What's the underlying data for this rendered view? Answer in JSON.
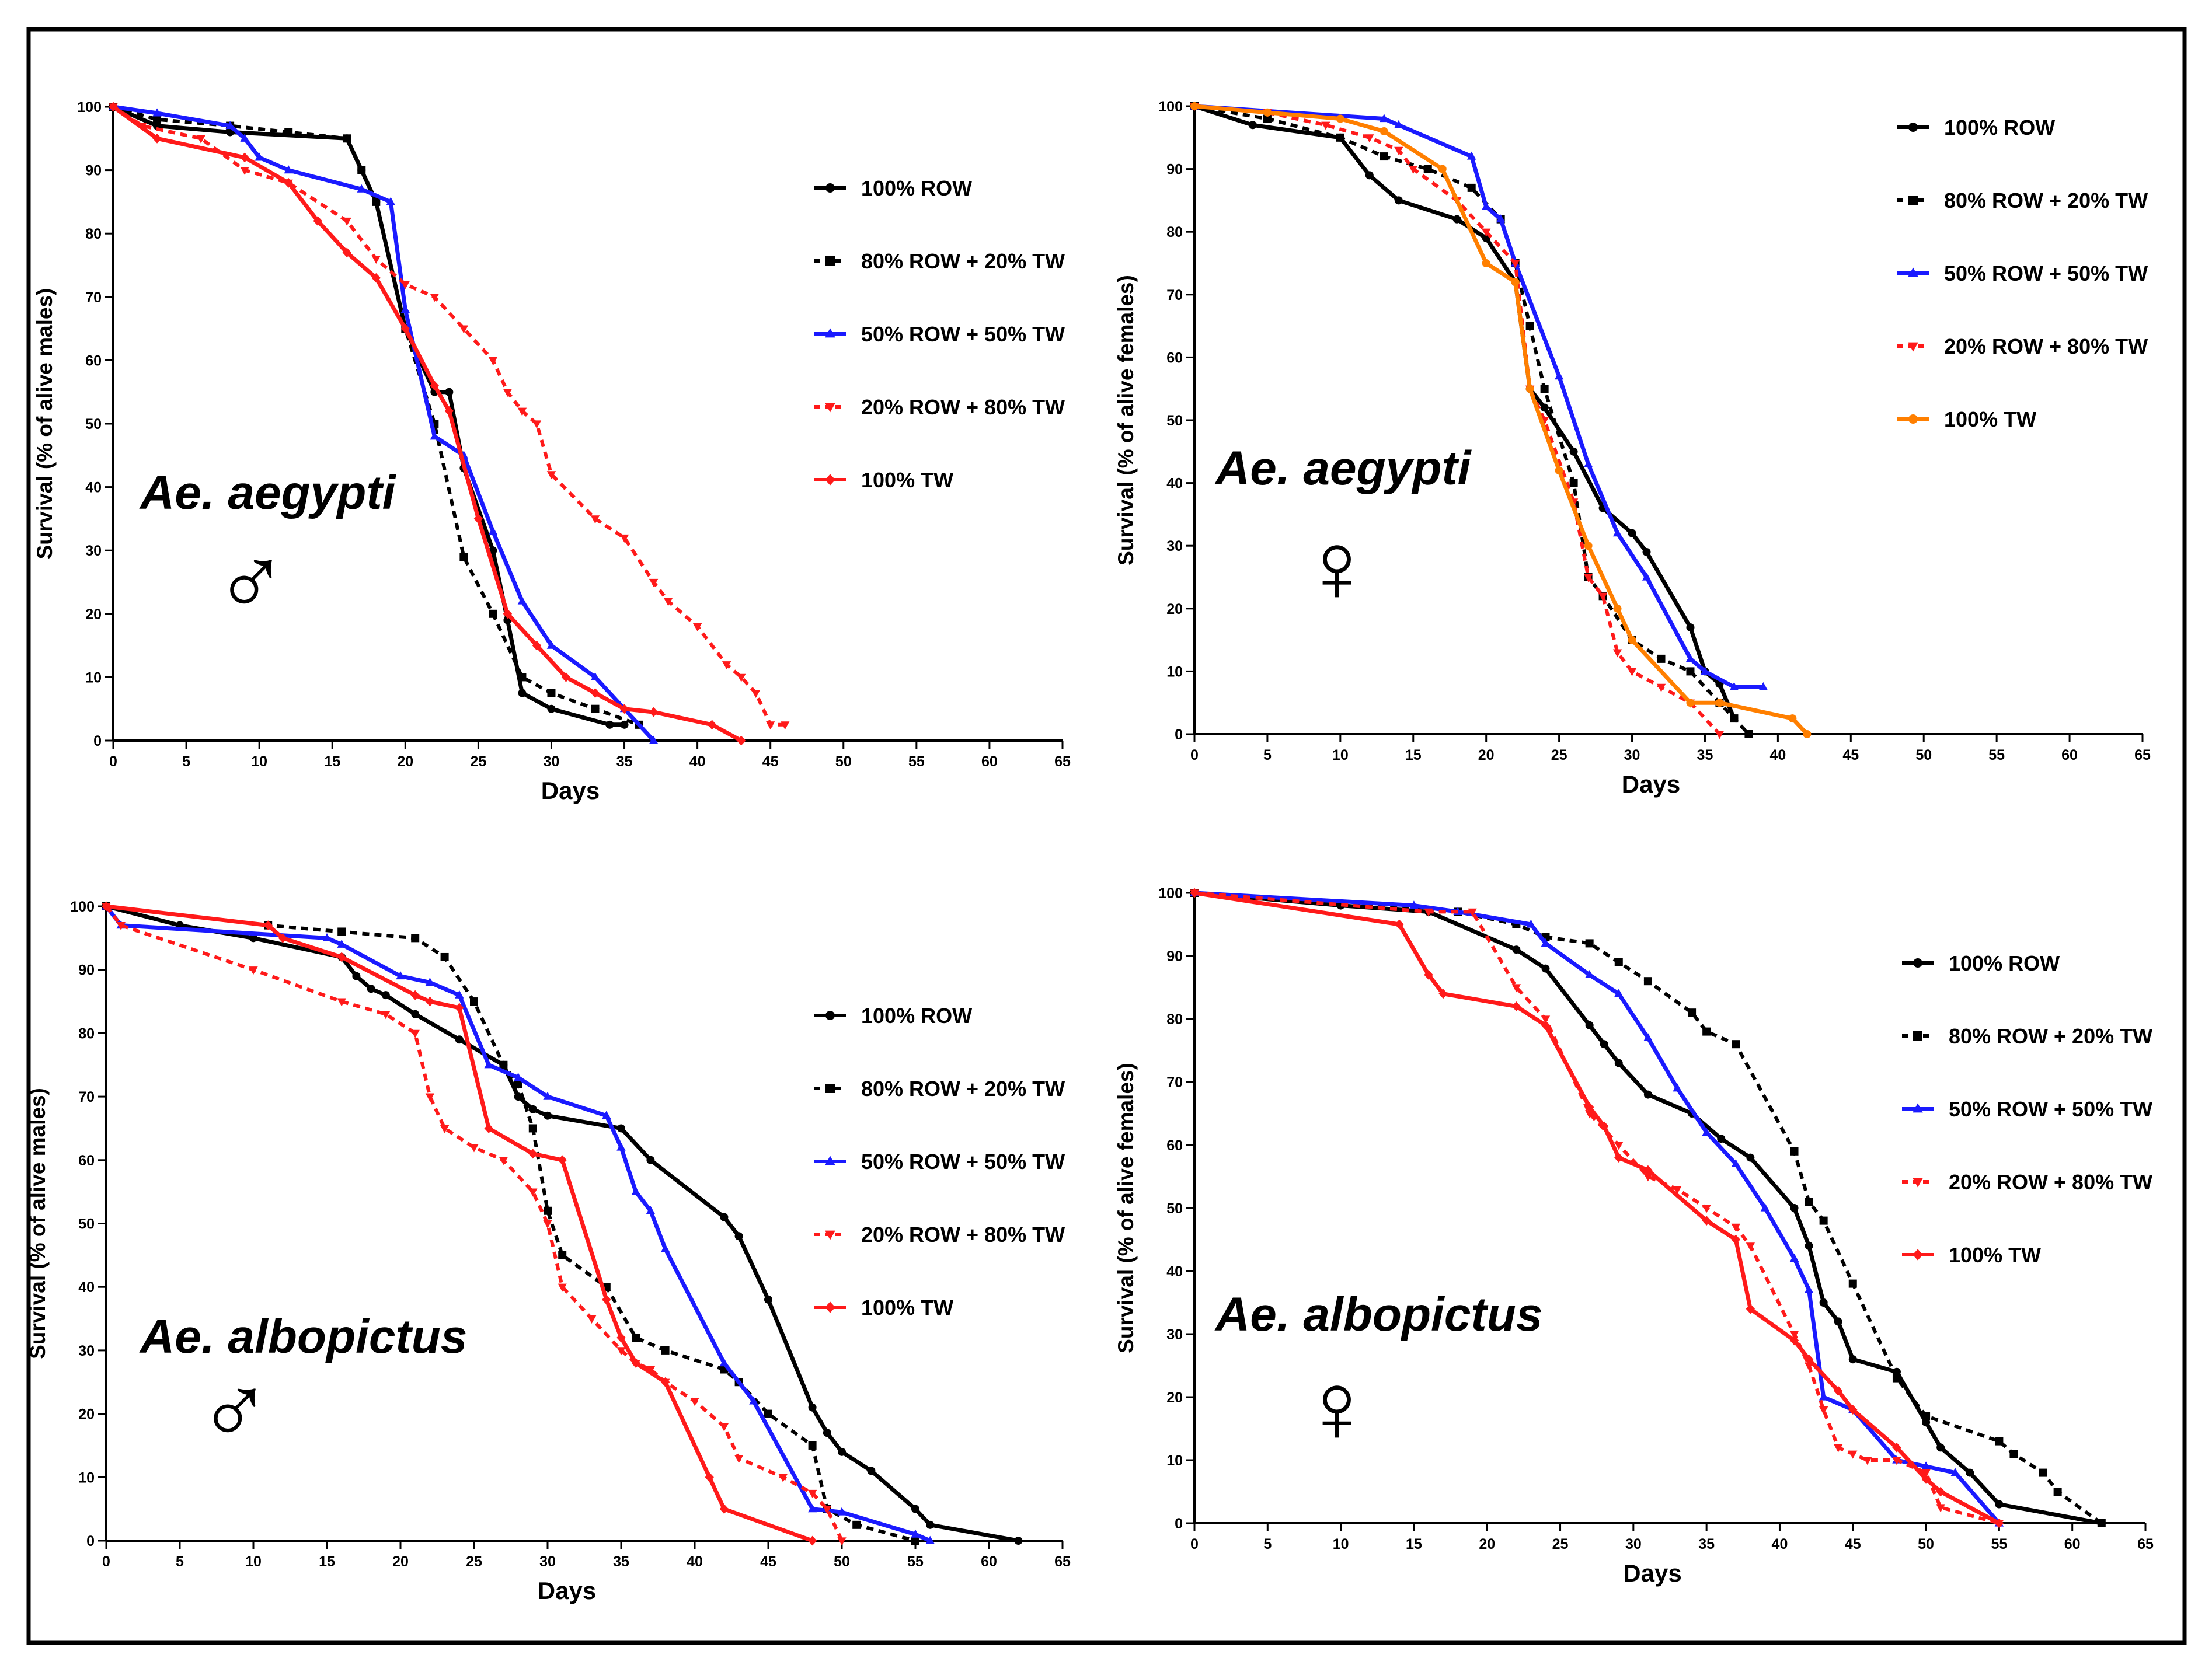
{
  "figure": {
    "border_color": "#000000",
    "background": "#ffffff"
  },
  "chart_data": [
    {
      "type": "line",
      "species_label": "Ae. aegypti",
      "sex_symbol": "♂",
      "xlabel": "Days",
      "ylabel": "Survival (% of alive males)",
      "xlim": [
        0,
        65
      ],
      "ylim": [
        0,
        100
      ],
      "xticks": [
        0,
        5,
        10,
        15,
        20,
        25,
        30,
        35,
        40,
        45,
        50,
        55,
        60,
        65
      ],
      "yticks": [
        0,
        10,
        20,
        30,
        40,
        50,
        60,
        70,
        80,
        90,
        100
      ],
      "legend_position": "right",
      "series": [
        {
          "name": "100% ROW",
          "color": "#000000",
          "dash": "solid",
          "marker": "circle",
          "x": [
            0,
            3,
            8,
            16,
            17,
            18,
            20,
            22,
            23,
            24,
            26,
            27,
            28,
            30,
            34,
            35
          ],
          "y": [
            100,
            97,
            96,
            95,
            90,
            85,
            65,
            55,
            55,
            43,
            30,
            19,
            7.5,
            5,
            2.5,
            2.5
          ]
        },
        {
          "name": "80% ROW + 20% TW",
          "color": "#000000",
          "dash": "dotted",
          "marker": "square",
          "x": [
            0,
            3,
            8,
            12,
            16,
            17,
            18,
            20,
            22,
            24,
            26,
            28,
            30,
            33,
            36
          ],
          "y": [
            100,
            98,
            97,
            96,
            95,
            90,
            85,
            65,
            50,
            29,
            20,
            10,
            7.5,
            5,
            2.5
          ]
        },
        {
          "name": "50% ROW + 50% TW",
          "color": "#1a1aff",
          "dash": "solid",
          "marker": "triangle-up",
          "x": [
            0,
            3,
            8,
            9,
            10,
            12,
            17,
            19,
            20,
            22,
            24,
            26,
            28,
            30,
            33,
            35,
            37
          ],
          "y": [
            100,
            99,
            97,
            95,
            92,
            90,
            87,
            85,
            68,
            48,
            45,
            33,
            22,
            15,
            10,
            5,
            0
          ]
        },
        {
          "name": "20% ROW + 80% TW",
          "color": "#ff1a1a",
          "dash": "dotted",
          "marker": "triangle-down",
          "x": [
            0,
            2,
            6,
            9,
            12,
            16,
            18,
            20,
            22,
            24,
            26,
            27,
            28,
            29,
            30,
            33,
            35,
            37,
            38,
            40,
            42,
            43,
            44,
            45,
            46
          ],
          "y": [
            100,
            97,
            95,
            90,
            88,
            82,
            76,
            72,
            70,
            65,
            60,
            55,
            52,
            50,
            42,
            35,
            32,
            25,
            22,
            18,
            12,
            10,
            7.5,
            2.5,
            2.5
          ]
        },
        {
          "name": "100% TW",
          "color": "#ff1a1a",
          "dash": "solid",
          "marker": "diamond",
          "x": [
            0,
            3,
            9,
            12,
            14,
            16,
            18,
            20,
            22,
            23,
            25,
            27,
            29,
            31,
            33,
            35,
            37,
            41,
            43
          ],
          "y": [
            100,
            95,
            92,
            88,
            82,
            77,
            73,
            65,
            56,
            52,
            35,
            20,
            15,
            10,
            7.5,
            5,
            4.5,
            2.5,
            0
          ]
        }
      ]
    },
    {
      "type": "line",
      "species_label": "Ae. aegypti",
      "sex_symbol": "♀",
      "xlabel": "Days",
      "ylabel": "Survival (% of alive females)",
      "xlim": [
        0,
        65
      ],
      "ylim": [
        0,
        100
      ],
      "xticks": [
        0,
        5,
        10,
        15,
        20,
        25,
        30,
        35,
        40,
        45,
        50,
        55,
        60,
        65
      ],
      "yticks": [
        0,
        10,
        20,
        30,
        40,
        50,
        60,
        70,
        80,
        90,
        100
      ],
      "legend_position": "top-right",
      "series": [
        {
          "name": "100% ROW",
          "color": "#000000",
          "dash": "solid",
          "marker": "circle",
          "x": [
            0,
            4,
            10,
            12,
            14,
            18,
            20,
            22,
            23,
            24,
            26,
            28,
            30,
            31,
            34,
            35,
            36,
            37
          ],
          "y": [
            100,
            97,
            95,
            89,
            85,
            82,
            79,
            72,
            55,
            52,
            45,
            36,
            32,
            29,
            17,
            10,
            8,
            2.5
          ]
        },
        {
          "name": "80% ROW + 20% TW",
          "color": "#000000",
          "dash": "dotted",
          "marker": "square",
          "x": [
            0,
            5,
            10,
            13,
            16,
            19,
            21,
            22,
            23,
            24,
            26,
            27,
            28,
            30,
            32,
            34,
            36,
            37,
            38
          ],
          "y": [
            100,
            98,
            95,
            92,
            90,
            87,
            82,
            75,
            65,
            55,
            40,
            25,
            22,
            15,
            12,
            10,
            5,
            2.5,
            0
          ]
        },
        {
          "name": "50% ROW + 50% TW",
          "color": "#1a1aff",
          "dash": "solid",
          "marker": "triangle-up",
          "x": [
            0,
            13,
            14,
            19,
            20,
            21,
            22,
            25,
            27,
            29,
            31,
            34,
            35,
            37,
            39
          ],
          "y": [
            100,
            98,
            97,
            92,
            84,
            82,
            75,
            57,
            43,
            32,
            25,
            12,
            10,
            7.5,
            7.5
          ]
        },
        {
          "name": "20% ROW + 80% TW",
          "color": "#ff1a1a",
          "dash": "dotted",
          "marker": "triangle-down",
          "x": [
            0,
            5,
            9,
            12,
            14,
            15,
            18,
            20,
            22,
            23,
            24,
            26,
            27,
            28,
            29,
            30,
            32,
            34,
            36
          ],
          "y": [
            100,
            99,
            97,
            95,
            93,
            90,
            85,
            80,
            75,
            55,
            50,
            37,
            25,
            22,
            13,
            10,
            7.5,
            5,
            0
          ]
        },
        {
          "name": "100% TW",
          "color": "#ff7f00",
          "dash": "solid",
          "marker": "circle",
          "x": [
            0,
            5,
            10,
            13,
            17,
            20,
            22,
            23,
            25,
            27,
            29,
            30,
            34,
            36,
            41,
            42
          ],
          "y": [
            100,
            99,
            98,
            96,
            90,
            75,
            72,
            55,
            42,
            30,
            20,
            15,
            5,
            5,
            2.5,
            0
          ]
        }
      ]
    },
    {
      "type": "line",
      "species_label": "Ae. albopictus",
      "sex_symbol": "♂",
      "xlabel": "Days",
      "ylabel": "Survival (% of alive males)",
      "xlim": [
        0,
        65
      ],
      "ylim": [
        0,
        100
      ],
      "xticks": [
        0,
        5,
        10,
        15,
        20,
        25,
        30,
        35,
        40,
        45,
        50,
        55,
        60,
        65
      ],
      "yticks": [
        0,
        10,
        20,
        30,
        40,
        50,
        60,
        70,
        80,
        90,
        100
      ],
      "legend_position": "right",
      "series": [
        {
          "name": "100% ROW",
          "color": "#000000",
          "dash": "solid",
          "marker": "circle",
          "x": [
            0,
            5,
            10,
            16,
            17,
            18,
            19,
            21,
            24,
            27,
            28,
            29,
            30,
            35,
            37,
            42,
            43,
            45,
            48,
            49,
            50,
            52,
            55,
            56,
            62
          ],
          "y": [
            100,
            97,
            95,
            92,
            89,
            87,
            86,
            83,
            79,
            75,
            70,
            68,
            67,
            65,
            60,
            51,
            48,
            38,
            21,
            17,
            14,
            11,
            5,
            2.5,
            0
          ]
        },
        {
          "name": "80% ROW + 20% TW",
          "color": "#000000",
          "dash": "dotted",
          "marker": "square",
          "x": [
            0,
            11,
            16,
            21,
            23,
            25,
            27,
            28,
            29,
            30,
            31,
            34,
            36,
            38,
            42,
            43,
            45,
            48,
            49,
            51,
            55
          ],
          "y": [
            100,
            97,
            96,
            95,
            92,
            85,
            75,
            72,
            65,
            52,
            45,
            40,
            32,
            30,
            27,
            25,
            20,
            15,
            5,
            2.5,
            0
          ]
        },
        {
          "name": "50% ROW + 50% TW",
          "color": "#1a1aff",
          "dash": "solid",
          "marker": "triangle-up",
          "x": [
            0,
            1,
            15,
            16,
            20,
            22,
            24,
            26,
            28,
            30,
            34,
            35,
            36,
            37,
            38,
            42,
            44,
            48,
            50,
            55,
            56
          ],
          "y": [
            100,
            97,
            95,
            94,
            89,
            88,
            86,
            75,
            73,
            70,
            67,
            62,
            55,
            52,
            46,
            28,
            22,
            5,
            4.5,
            1,
            0
          ]
        },
        {
          "name": "20% ROW + 80% TW",
          "color": "#ff1a1a",
          "dash": "dotted",
          "marker": "triangle-down",
          "x": [
            0,
            1,
            10,
            16,
            19,
            21,
            22,
            23,
            25,
            27,
            29,
            30,
            31,
            33,
            35,
            36,
            37,
            38,
            40,
            42,
            43,
            46,
            48,
            49,
            50
          ],
          "y": [
            100,
            97,
            90,
            85,
            83,
            80,
            70,
            65,
            62,
            60,
            55,
            50,
            40,
            35,
            30,
            28,
            27,
            25,
            22,
            18,
            13,
            10,
            7.5,
            5,
            0
          ]
        },
        {
          "name": "100% TW",
          "color": "#ff1a1a",
          "dash": "solid",
          "marker": "diamond",
          "x": [
            0,
            11,
            12,
            16,
            21,
            22,
            24,
            26,
            29,
            31,
            34,
            35,
            36,
            38,
            41,
            42,
            48
          ],
          "y": [
            100,
            97,
            95,
            92,
            86,
            85,
            84,
            65,
            61,
            60,
            38,
            32,
            28,
            25,
            10,
            5,
            0
          ]
        }
      ]
    },
    {
      "type": "line",
      "species_label": "Ae. albopictus",
      "sex_symbol": "♀",
      "xlabel": "Days",
      "ylabel": "Survival (% of alive females)",
      "xlim": [
        0,
        65
      ],
      "ylim": [
        0,
        100
      ],
      "xticks": [
        0,
        5,
        10,
        15,
        20,
        25,
        30,
        35,
        40,
        45,
        50,
        55,
        60,
        65
      ],
      "yticks": [
        0,
        10,
        20,
        30,
        40,
        50,
        60,
        70,
        80,
        90,
        100
      ],
      "legend_position": "right",
      "series": [
        {
          "name": "100% ROW",
          "color": "#000000",
          "dash": "solid",
          "marker": "circle",
          "x": [
            0,
            10,
            16,
            22,
            24,
            27,
            28,
            29,
            31,
            34,
            36,
            38,
            41,
            42,
            43,
            44,
            45,
            48,
            50,
            51,
            53,
            55,
            62
          ],
          "y": [
            100,
            98,
            97,
            91,
            88,
            79,
            76,
            73,
            68,
            65,
            61,
            58,
            50,
            44,
            35,
            32,
            26,
            24,
            16,
            12,
            8,
            3,
            0
          ]
        },
        {
          "name": "80% ROW + 20% TW",
          "color": "#000000",
          "dash": "dotted",
          "marker": "square",
          "x": [
            0,
            18,
            22,
            24,
            27,
            29,
            31,
            34,
            35,
            37,
            41,
            42,
            43,
            45,
            48,
            50,
            55,
            56,
            58,
            59,
            62
          ],
          "y": [
            100,
            97,
            95,
            93,
            92,
            89,
            86,
            81,
            78,
            76,
            59,
            51,
            48,
            38,
            23,
            17,
            13,
            11,
            8,
            5,
            0
          ]
        },
        {
          "name": "50% ROW + 50% TW",
          "color": "#1a1aff",
          "dash": "solid",
          "marker": "triangle-up",
          "x": [
            0,
            15,
            18,
            23,
            24,
            27,
            29,
            31,
            33,
            35,
            37,
            39,
            41,
            42,
            43,
            45,
            48,
            50,
            52,
            55
          ],
          "y": [
            100,
            98,
            97,
            95,
            92,
            87,
            84,
            77,
            69,
            62,
            57,
            50,
            42,
            37,
            20,
            18,
            10,
            9,
            8,
            0
          ]
        },
        {
          "name": "20% ROW + 80% TW",
          "color": "#ff1a1a",
          "dash": "dotted",
          "marker": "triangle-down",
          "x": [
            0,
            16,
            19,
            22,
            24,
            27,
            29,
            31,
            33,
            35,
            37,
            38,
            41,
            42,
            43,
            44,
            45,
            46,
            48,
            50,
            51,
            55
          ],
          "y": [
            100,
            97,
            97,
            85,
            80,
            65,
            60,
            55,
            53,
            50,
            47,
            44,
            30,
            25,
            18,
            12,
            11,
            10,
            10,
            8,
            2.5,
            0
          ]
        },
        {
          "name": "100% TW",
          "color": "#ff1a1a",
          "dash": "solid",
          "marker": "diamond",
          "x": [
            0,
            14,
            16,
            17,
            22,
            24,
            27,
            28,
            29,
            31,
            35,
            37,
            38,
            41,
            42,
            44,
            45,
            48,
            50,
            51,
            55
          ],
          "y": [
            100,
            95,
            87,
            84,
            82,
            79,
            66,
            63,
            58,
            56,
            48,
            45,
            34,
            29,
            26,
            21,
            18,
            12,
            7,
            5,
            0
          ]
        }
      ]
    }
  ]
}
